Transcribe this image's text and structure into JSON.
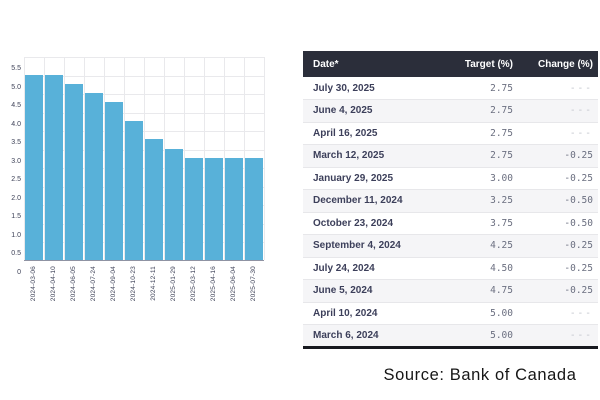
{
  "chart_data": {
    "type": "bar",
    "title": "",
    "xlabel": "",
    "ylabel": "",
    "categories": [
      "2024-03-06",
      "2024-04-10",
      "2024-06-05",
      "2024-07-24",
      "2024-09-04",
      "2024-10-23",
      "2024-12-11",
      "2025-01-29",
      "2025-03-12",
      "2025-04-16",
      "2025-06-04",
      "2025-07-30"
    ],
    "values": [
      5.0,
      5.0,
      4.75,
      4.5,
      4.25,
      3.75,
      3.25,
      3.0,
      2.75,
      2.75,
      2.75,
      2.75
    ],
    "ylim": [
      0,
      5.5
    ],
    "y_ticks": [
      "5.5",
      "5.0",
      "4.5",
      "4.0",
      "3.5",
      "3.0",
      "2.5",
      "2.0",
      "1.5",
      "1.0",
      "0.5",
      "0"
    ],
    "grid": true,
    "legend": "none"
  },
  "table": {
    "columns": [
      "Date*",
      "Target (%)",
      "Change (%)"
    ],
    "rows": [
      [
        "July 30, 2025",
        "2.75",
        "---"
      ],
      [
        "June 4, 2025",
        "2.75",
        "---"
      ],
      [
        "April 16, 2025",
        "2.75",
        "---"
      ],
      [
        "March 12, 2025",
        "2.75",
        "-0.25"
      ],
      [
        "January 29, 2025",
        "3.00",
        "-0.25"
      ],
      [
        "December 11, 2024",
        "3.25",
        "-0.50"
      ],
      [
        "October 23, 2024",
        "3.75",
        "-0.50"
      ],
      [
        "September 4, 2024",
        "4.25",
        "-0.25"
      ],
      [
        "July 24, 2024",
        "4.50",
        "-0.25"
      ],
      [
        "June 5, 2024",
        "4.75",
        "-0.25"
      ],
      [
        "April 10, 2024",
        "5.00",
        "---"
      ],
      [
        "March 6, 2024",
        "5.00",
        "---"
      ]
    ],
    "dash_value": "---"
  },
  "caption": {
    "source": "Source: Bank of Canada"
  },
  "colors": {
    "bar": "#58b1d9",
    "grid": "#e9e9ec",
    "axis_line": "#8f93a3",
    "axis_label": "#3d4157",
    "table_header_bg": "#2b2e3a",
    "table_header_text": "#ffffff",
    "date_text": "#3c3f5a",
    "number_text": "#6b6f80",
    "dash_text": "#c2c5cc",
    "row_stripe": "#f5f5f7",
    "row_border": "#e7e7ea",
    "table_bottom_border": "#17191f",
    "caption_text": "#161616"
  }
}
